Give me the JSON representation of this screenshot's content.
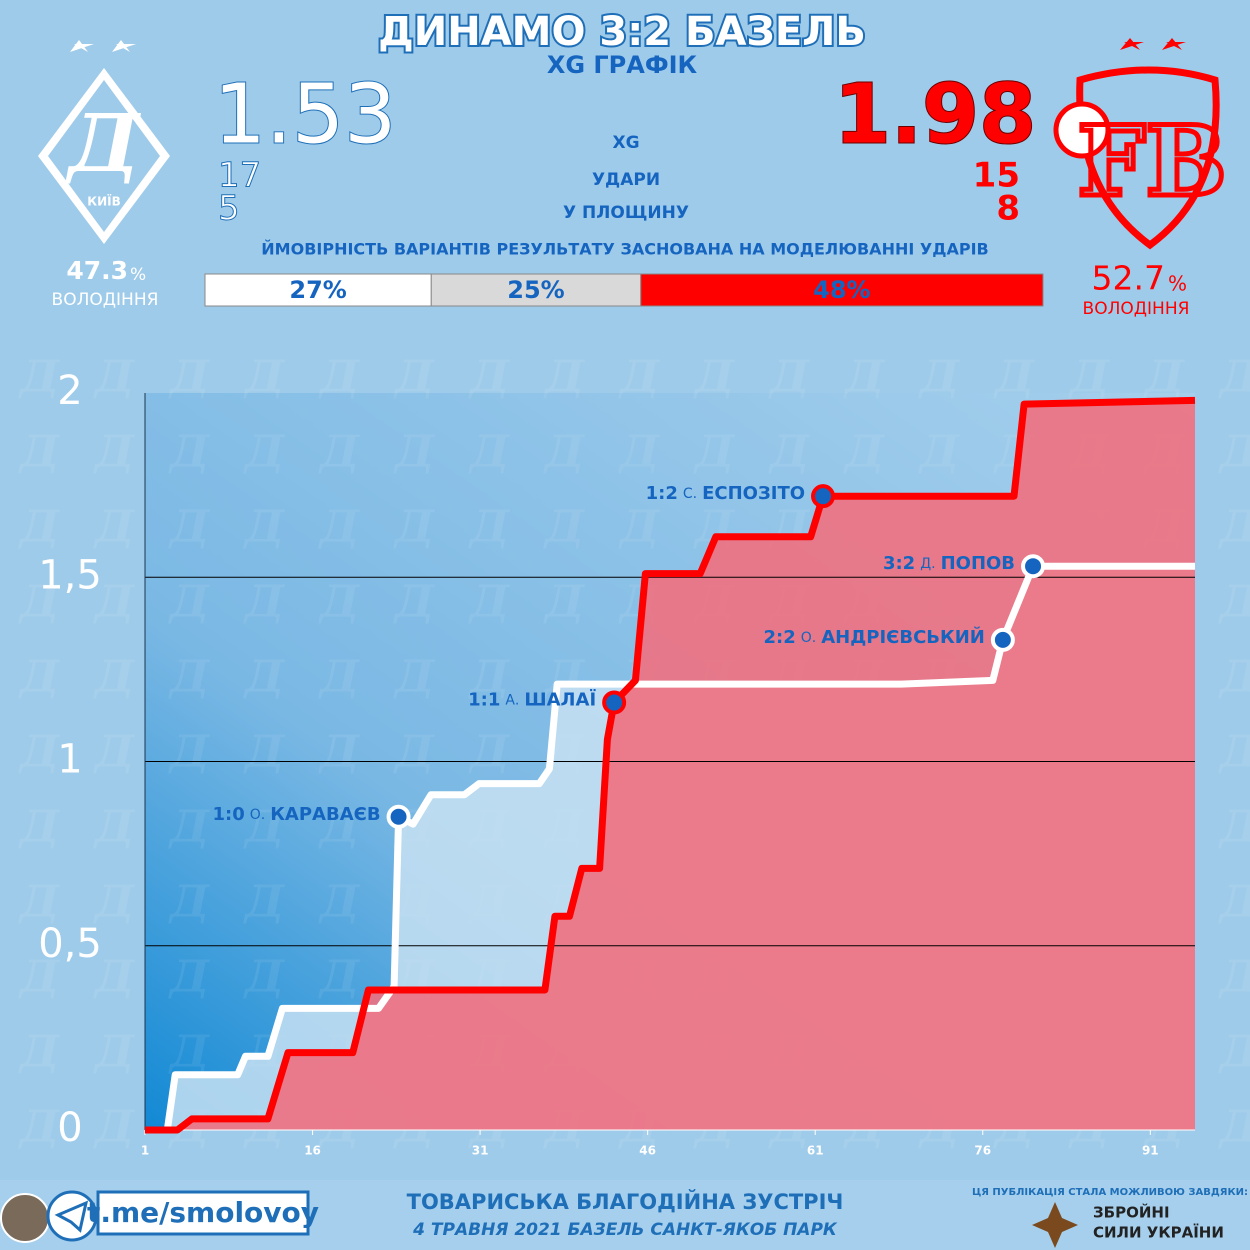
{
  "header": {
    "title": "ДИНАМО 3:2 БАЗЕЛЬ",
    "subtitle": "XG ГРАФІК"
  },
  "teams": {
    "home": {
      "logo_text": "КИЇВ",
      "xg": 1.53,
      "shots": 17,
      "on_target": 5,
      "possession": 47.3,
      "possession_unit": "%",
      "possession_label": "ВОЛОДІННЯ"
    },
    "away": {
      "xg": 1.98,
      "shots": 15,
      "on_target": 8,
      "possession": 52.7,
      "possession_unit": "%",
      "possession_label": "ВОЛОДІННЯ"
    }
  },
  "stats_labels": [
    "XG",
    "УДАРИ",
    "У ПЛОЩИНУ"
  ],
  "probabilities": {
    "caption": "ЙМОВІРНІСТЬ ВАРІАНТІВ РЕЗУЛЬТАТУ ЗАСНОВАНА НА МОДЕЛЮВАННІ УДАРІВ",
    "values": [
      27,
      25,
      48
    ],
    "value_labels": [
      "27%",
      "25%",
      "48%"
    ],
    "colors": [
      "#ffffff",
      "#d9d9d9",
      "#ff0000"
    ]
  },
  "chart_data": {
    "type": "line",
    "xlim": [
      1,
      95
    ],
    "xticks": [
      1,
      16,
      31,
      46,
      61,
      76,
      91
    ],
    "ylim": [
      0,
      2
    ],
    "yticks": [
      0,
      {
        "value": 0.5,
        "label": "0,5"
      },
      1,
      {
        "value": 1.5,
        "label": "1,5"
      },
      2
    ],
    "grid": true,
    "series": [
      {
        "name": "Динамо",
        "color": "#ffffff",
        "area_color": "#c7e0f2",
        "x": [
          1,
          3,
          3.7,
          9.3,
          10,
          12,
          13.3,
          21.9,
          23.3,
          23.7,
          25,
          26.6,
          29.6,
          30.9,
          36.3,
          37.2,
          37.9,
          68.7,
          76.9,
          77.8,
          80.5,
          95
        ],
        "values": [
          0,
          0,
          0.15,
          0.15,
          0.2,
          0.2,
          0.33,
          0.33,
          0.39,
          0.85,
          0.83,
          0.91,
          0.91,
          0.94,
          0.94,
          0.98,
          1.21,
          1.21,
          1.22,
          1.33,
          1.53,
          1.53
        ]
      },
      {
        "name": "Базель",
        "color": "#ff0000",
        "area_color": "#f0707f",
        "x": [
          1,
          3.9,
          5.2,
          12,
          13.8,
          19.6,
          21,
          36.8,
          37.7,
          39,
          40.1,
          41.7,
          42.4,
          43,
          44.9,
          45.8,
          50.7,
          52.1,
          60.6,
          61.7,
          78.8,
          79.7,
          95
        ],
        "values": [
          0,
          0,
          0.03,
          0.03,
          0.21,
          0.21,
          0.38,
          0.38,
          0.58,
          0.58,
          0.71,
          0.71,
          1.06,
          1.16,
          1.22,
          1.51,
          1.51,
          1.61,
          1.61,
          1.72,
          1.72,
          1.97,
          1.98
        ]
      }
    ],
    "annotations": [
      {
        "score": "1:0",
        "initial": "О.",
        "name": "КАРАВАЄВ",
        "x": 23.7,
        "y": 0.85,
        "edge": "#ffffff"
      },
      {
        "score": "1:1",
        "initial": "А.",
        "name": "ШАЛАЇ",
        "x": 43,
        "y": 1.16,
        "edge": "#ff0000"
      },
      {
        "score": "1:2",
        "initial": "С.",
        "name": "ЕСПОЗІТО",
        "x": 61.7,
        "y": 1.72,
        "edge": "#ff0000"
      },
      {
        "score": "2:2",
        "initial": "О.",
        "name": "АНДРІЄВСЬКИЙ",
        "x": 77.8,
        "y": 1.33,
        "edge": "#ffffff"
      },
      {
        "score": "3:2",
        "initial": "Д.",
        "name": "ПОПОВ",
        "x": 80.5,
        "y": 1.53,
        "edge": "#ffffff"
      }
    ]
  },
  "footer": {
    "link": "t.me/smolovoy",
    "event": "ТОВАРИСЬКА БЛАГОДІЙНА ЗУСТРІЧ",
    "date_place": "4 ТРАВНЯ 2021 БАЗЕЛЬ САНКТ-ЯКОБ ПАРК",
    "sponsor_note": "ЦЯ ПУБЛІКАЦІЯ СТАЛА МОЖЛИВОЮ ЗАВДЯКИ:",
    "sponsor_line1": "ЗБРОЙНІ",
    "sponsor_line2": "СИЛИ УКРАЇНИ"
  }
}
